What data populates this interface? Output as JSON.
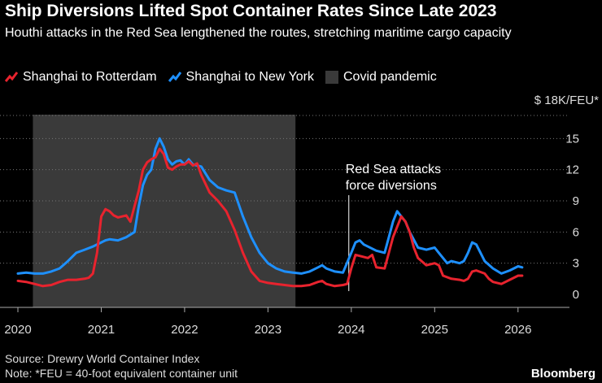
{
  "chart_data": {
    "type": "line",
    "title": "Ship Diversions Lifted Spot Container Rates Since Late 2023",
    "subtitle": "Houthi attacks in the Red Sea lengthened the routes, stretching maritime cargo capacity",
    "unit_label": "$ 18K/FEU*",
    "xlim": [
      2020,
      2026.5
    ],
    "ylim": [
      0,
      18
    ],
    "y_ticks": [
      0,
      3,
      6,
      9,
      12,
      15
    ],
    "x_ticks": [
      2020,
      2021,
      2022,
      2023,
      2024,
      2025,
      2026
    ],
    "grid": "horizontal dotted",
    "legend_position": "top-left",
    "colors": {
      "rotterdam": "#e8232e",
      "newyork": "#1e90ff",
      "covid": "#3a3a3a"
    },
    "shaded_region": {
      "label": "Covid pandemic",
      "x_start": 2020.18,
      "x_end": 2023.33
    },
    "annotation": {
      "line1": "Red Sea attacks",
      "line2": "force diversions",
      "x": 2023.97
    },
    "series": [
      {
        "name": "Shanghai to Rotterdam",
        "color": "#e8232e",
        "points": [
          [
            2020.0,
            1.3
          ],
          [
            2020.1,
            1.2
          ],
          [
            2020.2,
            1.0
          ],
          [
            2020.3,
            0.8
          ],
          [
            2020.4,
            0.9
          ],
          [
            2020.5,
            1.2
          ],
          [
            2020.6,
            1.4
          ],
          [
            2020.7,
            1.4
          ],
          [
            2020.8,
            1.5
          ],
          [
            2020.85,
            1.6
          ],
          [
            2020.9,
            2.0
          ],
          [
            2020.95,
            4.0
          ],
          [
            2021.0,
            7.5
          ],
          [
            2021.05,
            8.2
          ],
          [
            2021.1,
            8.0
          ],
          [
            2021.15,
            7.6
          ],
          [
            2021.2,
            7.4
          ],
          [
            2021.3,
            7.6
          ],
          [
            2021.35,
            7.0
          ],
          [
            2021.4,
            8.5
          ],
          [
            2021.45,
            10.0
          ],
          [
            2021.5,
            12.0
          ],
          [
            2021.55,
            12.7
          ],
          [
            2021.6,
            13.0
          ],
          [
            2021.65,
            13.2
          ],
          [
            2021.7,
            14.0
          ],
          [
            2021.75,
            13.5
          ],
          [
            2021.8,
            12.2
          ],
          [
            2021.85,
            12.0
          ],
          [
            2021.9,
            12.3
          ],
          [
            2021.95,
            12.5
          ],
          [
            2022.0,
            12.5
          ],
          [
            2022.05,
            12.8
          ],
          [
            2022.1,
            12.4
          ],
          [
            2022.15,
            12.6
          ],
          [
            2022.2,
            11.5
          ],
          [
            2022.3,
            9.8
          ],
          [
            2022.4,
            9.0
          ],
          [
            2022.5,
            8.0
          ],
          [
            2022.6,
            6.2
          ],
          [
            2022.7,
            4.0
          ],
          [
            2022.8,
            2.2
          ],
          [
            2022.9,
            1.3
          ],
          [
            2023.0,
            1.1
          ],
          [
            2023.1,
            1.0
          ],
          [
            2023.2,
            0.9
          ],
          [
            2023.3,
            0.8
          ],
          [
            2023.4,
            0.8
          ],
          [
            2023.5,
            0.9
          ],
          [
            2023.6,
            1.2
          ],
          [
            2023.65,
            1.3
          ],
          [
            2023.7,
            1.0
          ],
          [
            2023.8,
            0.8
          ],
          [
            2023.9,
            0.9
          ],
          [
            2023.95,
            1.0
          ],
          [
            2024.0,
            2.5
          ],
          [
            2024.05,
            3.8
          ],
          [
            2024.1,
            3.7
          ],
          [
            2024.2,
            3.5
          ],
          [
            2024.25,
            3.8
          ],
          [
            2024.3,
            2.6
          ],
          [
            2024.4,
            2.5
          ],
          [
            2024.45,
            4.0
          ],
          [
            2024.5,
            5.5
          ],
          [
            2024.55,
            6.5
          ],
          [
            2024.6,
            7.5
          ],
          [
            2024.65,
            7.0
          ],
          [
            2024.7,
            6.0
          ],
          [
            2024.75,
            4.5
          ],
          [
            2024.8,
            3.5
          ],
          [
            2024.9,
            2.8
          ],
          [
            2025.0,
            3.0
          ],
          [
            2025.05,
            2.8
          ],
          [
            2025.1,
            1.8
          ],
          [
            2025.2,
            1.5
          ],
          [
            2025.3,
            1.4
          ],
          [
            2025.35,
            1.3
          ],
          [
            2025.4,
            1.5
          ],
          [
            2025.45,
            2.2
          ],
          [
            2025.5,
            2.3
          ],
          [
            2025.6,
            2.0
          ],
          [
            2025.65,
            1.5
          ],
          [
            2025.7,
            1.2
          ],
          [
            2025.8,
            1.0
          ],
          [
            2025.9,
            1.4
          ],
          [
            2026.0,
            1.8
          ],
          [
            2026.05,
            1.8
          ]
        ]
      },
      {
        "name": "Shanghai to New York",
        "color": "#1e90ff",
        "points": [
          [
            2020.0,
            2.0
          ],
          [
            2020.1,
            2.1
          ],
          [
            2020.2,
            2.0
          ],
          [
            2020.3,
            2.0
          ],
          [
            2020.4,
            2.2
          ],
          [
            2020.5,
            2.5
          ],
          [
            2020.6,
            3.2
          ],
          [
            2020.7,
            4.0
          ],
          [
            2020.8,
            4.3
          ],
          [
            2020.9,
            4.6
          ],
          [
            2021.0,
            5.0
          ],
          [
            2021.05,
            5.2
          ],
          [
            2021.1,
            5.3
          ],
          [
            2021.2,
            5.2
          ],
          [
            2021.3,
            5.5
          ],
          [
            2021.4,
            6.0
          ],
          [
            2021.45,
            8.5
          ],
          [
            2021.5,
            10.5
          ],
          [
            2021.55,
            11.5
          ],
          [
            2021.6,
            12.0
          ],
          [
            2021.65,
            14.0
          ],
          [
            2021.7,
            15.0
          ],
          [
            2021.75,
            14.2
          ],
          [
            2021.8,
            13.0
          ],
          [
            2021.85,
            12.5
          ],
          [
            2021.9,
            12.8
          ],
          [
            2021.95,
            12.9
          ],
          [
            2022.0,
            12.5
          ],
          [
            2022.05,
            13.0
          ],
          [
            2022.1,
            12.5
          ],
          [
            2022.2,
            12.3
          ],
          [
            2022.3,
            11.0
          ],
          [
            2022.4,
            10.3
          ],
          [
            2022.5,
            10.0
          ],
          [
            2022.6,
            9.8
          ],
          [
            2022.7,
            7.5
          ],
          [
            2022.8,
            5.5
          ],
          [
            2022.9,
            4.0
          ],
          [
            2023.0,
            3.0
          ],
          [
            2023.1,
            2.5
          ],
          [
            2023.2,
            2.2
          ],
          [
            2023.3,
            2.1
          ],
          [
            2023.4,
            2.0
          ],
          [
            2023.5,
            2.2
          ],
          [
            2023.6,
            2.6
          ],
          [
            2023.65,
            2.8
          ],
          [
            2023.7,
            2.5
          ],
          [
            2023.8,
            2.2
          ],
          [
            2023.9,
            2.1
          ],
          [
            2024.0,
            4.0
          ],
          [
            2024.05,
            5.0
          ],
          [
            2024.1,
            5.2
          ],
          [
            2024.15,
            4.8
          ],
          [
            2024.2,
            4.6
          ],
          [
            2024.3,
            4.2
          ],
          [
            2024.4,
            4.0
          ],
          [
            2024.45,
            5.5
          ],
          [
            2024.5,
            7.0
          ],
          [
            2024.55,
            8.0
          ],
          [
            2024.6,
            7.5
          ],
          [
            2024.65,
            7.0
          ],
          [
            2024.7,
            6.0
          ],
          [
            2024.8,
            4.5
          ],
          [
            2024.9,
            4.3
          ],
          [
            2025.0,
            4.5
          ],
          [
            2025.05,
            4.0
          ],
          [
            2025.1,
            3.5
          ],
          [
            2025.15,
            3.0
          ],
          [
            2025.2,
            3.2
          ],
          [
            2025.3,
            3.0
          ],
          [
            2025.35,
            3.2
          ],
          [
            2025.4,
            4.0
          ],
          [
            2025.45,
            5.0
          ],
          [
            2025.5,
            4.8
          ],
          [
            2025.6,
            3.2
          ],
          [
            2025.7,
            2.5
          ],
          [
            2025.8,
            2.0
          ],
          [
            2025.9,
            2.3
          ],
          [
            2026.0,
            2.7
          ],
          [
            2026.05,
            2.6
          ]
        ]
      }
    ]
  },
  "footer": {
    "source": "Source: Drewry World Container Index",
    "note": "Note: *FEU = 40-foot equivalent container unit",
    "brand": "Bloomberg"
  }
}
